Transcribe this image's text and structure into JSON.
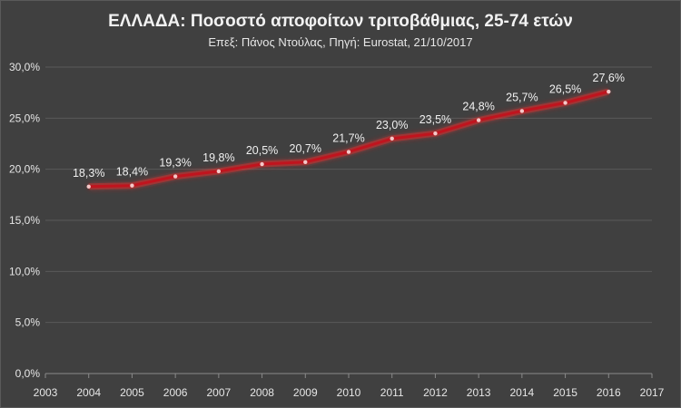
{
  "chart_data": {
    "type": "line",
    "title": "ΕΛΛΑΔΑ: Ποσοστό  αποφοίτων τριτοβάθμιας, 25-74 ετών",
    "subtitle": "Επεξ: Πάνος Ντούλας, Πηγή: Eurostat, 21/10/2017",
    "x": [
      2004,
      2005,
      2006,
      2007,
      2008,
      2009,
      2010,
      2011,
      2012,
      2013,
      2014,
      2015,
      2016
    ],
    "values": [
      18.3,
      18.4,
      19.3,
      19.8,
      20.5,
      20.7,
      21.7,
      23.0,
      23.5,
      24.8,
      25.7,
      26.5,
      27.6
    ],
    "value_labels": [
      "18,3%",
      "18,4%",
      "19,3%",
      "19,8%",
      "20,5%",
      "20,7%",
      "21,7%",
      "23,0%",
      "23,5%",
      "24,8%",
      "25,7%",
      "26,5%",
      "27,6%"
    ],
    "xlim": [
      2003,
      2017
    ],
    "x_ticks": [
      "2003",
      "2004",
      "2005",
      "2006",
      "2007",
      "2008",
      "2009",
      "2010",
      "2011",
      "2012",
      "2013",
      "2014",
      "2015",
      "2016",
      "2017"
    ],
    "ylim": [
      0,
      30
    ],
    "y_ticks": [
      "0,0%",
      "5,0%",
      "10,0%",
      "15,0%",
      "20,0%",
      "25,0%",
      "30,0%"
    ],
    "grid": "horizontal",
    "legend": "none",
    "colors": {
      "background": "#404040",
      "line": "#c0141e",
      "glow": "#ff2a2a",
      "grid": "#5a5a5a",
      "text": "#e6e6e6"
    }
  }
}
